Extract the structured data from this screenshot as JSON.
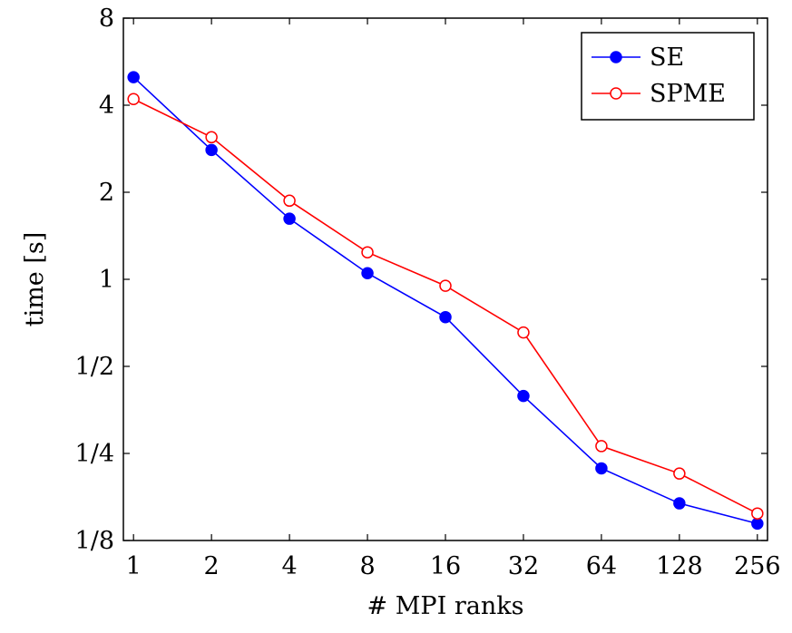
{
  "chart_data": {
    "type": "line",
    "title": "",
    "xlabel": "# MPI ranks",
    "ylabel": "time [s]",
    "x_scale": "log2",
    "y_scale": "log2",
    "x": [
      1,
      2,
      4,
      8,
      16,
      32,
      64,
      128,
      256
    ],
    "x_tick_labels": [
      "1",
      "2",
      "4",
      "8",
      "16",
      "32",
      "64",
      "128",
      "256"
    ],
    "y_ticks": [
      0.125,
      0.25,
      0.5,
      1,
      2,
      4,
      8
    ],
    "y_tick_labels": [
      "1/8",
      "1/4",
      "1/2",
      "1",
      "2",
      "4",
      "8"
    ],
    "ylim": [
      0.125,
      8
    ],
    "grid": false,
    "legend_position": "top-right",
    "series": [
      {
        "name": "SE",
        "color": "#0000ff",
        "marker": "filled-circle",
        "values": [
          5.0,
          2.8,
          1.62,
          1.05,
          0.74,
          0.395,
          0.222,
          0.168,
          0.143
        ]
      },
      {
        "name": "SPME",
        "color": "#ff0000",
        "marker": "open-circle",
        "values": [
          4.2,
          3.1,
          1.87,
          1.24,
          0.95,
          0.655,
          0.265,
          0.213,
          0.155
        ]
      }
    ]
  }
}
